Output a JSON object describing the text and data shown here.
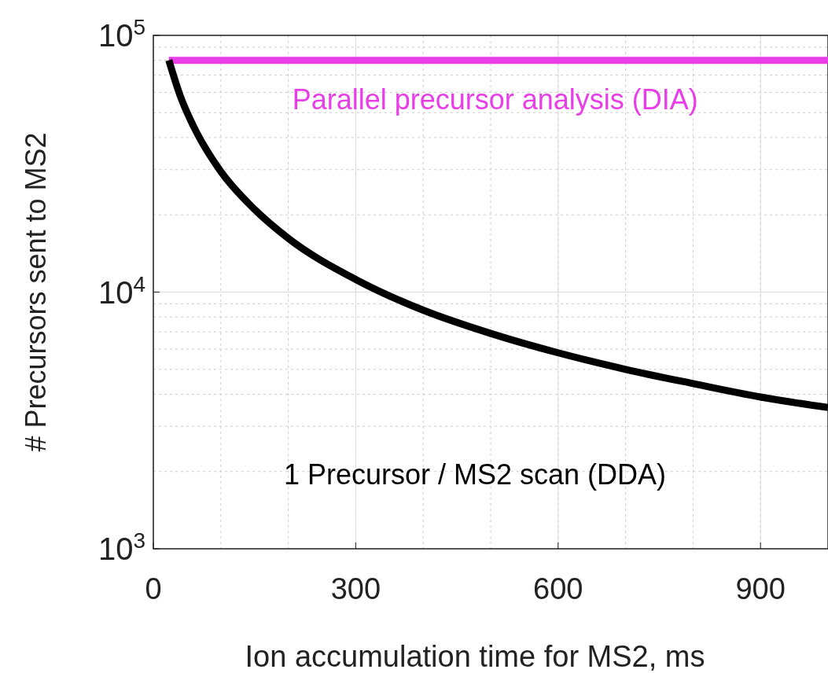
{
  "chart_data": {
    "type": "line",
    "xlabel": "Ion accumulation time for MS2, ms",
    "ylabel": "# Precursors sent to MS2",
    "log": "y",
    "grid": true,
    "marker": "none",
    "line_style": "solid",
    "xlim": [
      0,
      1000
    ],
    "ylim": [
      1000,
      100000
    ],
    "xticks": [
      0,
      300,
      600,
      900
    ],
    "yticks": [
      {
        "value": 1000,
        "label": "10$^{3}$"
      },
      {
        "value": 10000,
        "label": "10$^{4}$"
      },
      {
        "value": 100000,
        "label": "10$^{5}$"
      }
    ],
    "series": [
      {
        "name": "Parallel precursor analysis (DIA)",
        "color": "#e83ee8",
        "x": [
          23,
          1000
        ],
        "values": [
          80000,
          80000
        ]
      },
      {
        "name": "1 Precursor / MS2 scan (DDA)",
        "color": "#000000",
        "x": [
          23,
          40,
          60,
          100,
          150,
          200,
          300,
          400,
          500,
          600,
          700,
          800,
          900,
          1000
        ],
        "values": [
          80000,
          58000,
          44000,
          29500,
          21000,
          16200,
          11200,
          8500,
          6900,
          5800,
          5000,
          4400,
          3900,
          3550
        ]
      }
    ]
  }
}
